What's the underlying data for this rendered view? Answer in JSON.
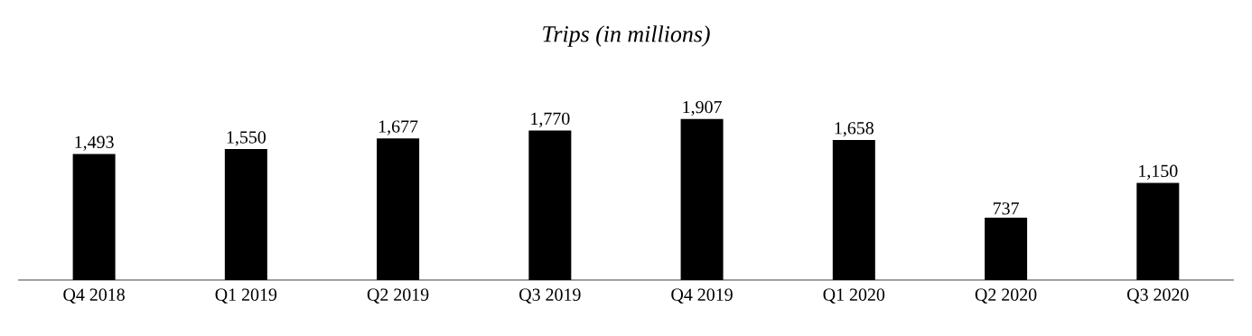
{
  "chart_data": {
    "type": "bar",
    "title": "Trips (in millions)",
    "categories": [
      "Q4 2018",
      "Q1 2019",
      "Q2 2019",
      "Q3 2019",
      "Q4 2019",
      "Q1 2020",
      "Q2 2020",
      "Q3 2020"
    ],
    "values": [
      1493,
      1550,
      1677,
      1770,
      1907,
      1658,
      737,
      1150
    ],
    "value_labels": [
      "1,493",
      "1,550",
      "1,677",
      "1,770",
      "1,907",
      "1,658",
      "737",
      "1,150"
    ],
    "color": "#000000"
  }
}
